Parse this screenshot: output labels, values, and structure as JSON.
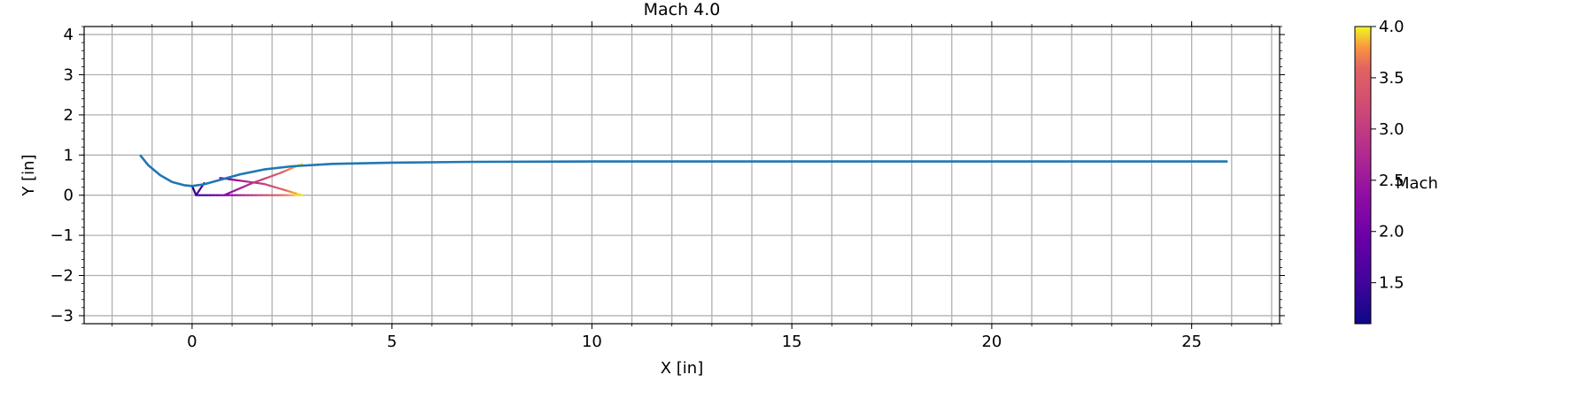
{
  "chart_data": {
    "type": "line",
    "title": "Mach 4.0",
    "xlabel": "X [in]",
    "ylabel": "Y [in]",
    "xlim": [
      -2.7,
      27.2
    ],
    "ylim": [
      -3.2,
      4.2
    ],
    "grid": true,
    "x_ticks": [
      0,
      5,
      10,
      15,
      20,
      25
    ],
    "y_ticks": [
      -3,
      -2,
      -1,
      0,
      1,
      2,
      3,
      4
    ],
    "series": [
      {
        "color": "#1f77b4",
        "points": [
          [
            -1.3,
            1.0
          ],
          [
            -1.1,
            0.75
          ],
          [
            -0.8,
            0.5
          ],
          [
            -0.5,
            0.33
          ],
          [
            -0.2,
            0.25
          ],
          [
            0.0,
            0.23
          ],
          [
            0.3,
            0.27
          ],
          [
            0.7,
            0.38
          ],
          [
            1.2,
            0.52
          ],
          [
            1.8,
            0.64
          ],
          [
            2.5,
            0.72
          ],
          [
            3.5,
            0.78
          ],
          [
            5.0,
            0.81
          ],
          [
            7.0,
            0.83
          ],
          [
            10.0,
            0.84
          ],
          [
            15.0,
            0.84
          ],
          [
            20.0,
            0.84
          ],
          [
            25.0,
            0.84
          ],
          [
            25.9,
            0.84
          ]
        ]
      }
    ],
    "characteristic_lines": [
      {
        "points": [
          [
            0.0,
            0.23
          ],
          [
            0.1,
            0.0
          ]
        ],
        "mach": [
          1.15,
          1.4
        ]
      },
      {
        "points": [
          [
            0.1,
            0.0
          ],
          [
            0.8,
            0.0
          ]
        ],
        "mach": [
          1.4,
          2.1
        ]
      },
      {
        "points": [
          [
            0.8,
            0.0
          ],
          [
            1.6,
            0.0
          ]
        ],
        "mach": [
          2.1,
          3.0
        ]
      },
      {
        "points": [
          [
            1.6,
            0.0
          ],
          [
            2.7,
            0.0
          ]
        ],
        "mach": [
          3.0,
          4.0
        ]
      },
      {
        "points": [
          [
            0.3,
            0.3
          ],
          [
            0.1,
            0.0
          ]
        ],
        "mach": [
          1.5,
          1.6
        ]
      },
      {
        "points": [
          [
            0.7,
            0.43
          ],
          [
            1.8,
            0.28
          ],
          [
            2.75,
            0.0
          ]
        ],
        "mach": [
          2.0,
          4.0
        ]
      },
      {
        "points": [
          [
            0.8,
            0.0
          ],
          [
            1.5,
            0.3
          ],
          [
            2.2,
            0.55
          ],
          [
            2.75,
            0.78
          ]
        ],
        "mach": [
          2.2,
          4.0
        ]
      }
    ],
    "colorbar": {
      "label": "Mach",
      "min": 1.1,
      "max": 4.0,
      "ticks": [
        "1.5",
        "2.0",
        "2.5",
        "3.0",
        "3.5",
        "4.0"
      ],
      "colormap": "plasma"
    }
  }
}
